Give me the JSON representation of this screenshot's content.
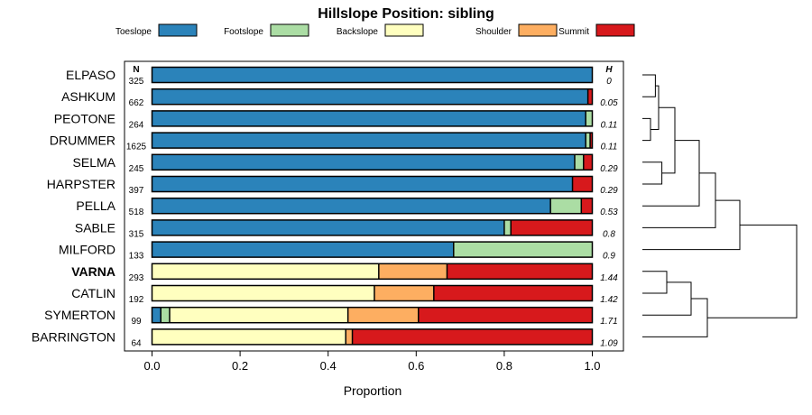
{
  "chart_data": {
    "type": "bar",
    "orientation": "horizontal",
    "stacked": true,
    "title": "Hillslope Position: sibling",
    "xlabel": "Proportion",
    "ylabel": "",
    "xlim": [
      0,
      1
    ],
    "xticks": [
      "0.0",
      "0.2",
      "0.4",
      "0.6",
      "0.8",
      "1.0"
    ],
    "xtick_values": [
      0,
      0.2,
      0.4,
      0.6,
      0.8,
      1.0
    ],
    "n_header": "N",
    "h_header": "H",
    "legend": [
      {
        "name": "Toeslope",
        "color": "#2b83ba"
      },
      {
        "name": "Footslope",
        "color": "#abdda4"
      },
      {
        "name": "Backslope",
        "color": "#ffffbf"
      },
      {
        "name": "Shoulder",
        "color": "#fdae61"
      },
      {
        "name": "Summit",
        "color": "#d7191c"
      }
    ],
    "categories": [
      "ELPASO",
      "ASHKUM",
      "PEOTONE",
      "DRUMMER",
      "SELMA",
      "HARPSTER",
      "PELLA",
      "SABLE",
      "MILFORD",
      "VARNA",
      "CATLIN",
      "SYMERTON",
      "BARRINGTON"
    ],
    "highlight": "VARNA",
    "n": [
      "325",
      "662",
      "264",
      "1625",
      "245",
      "397",
      "518",
      "315",
      "133",
      "293",
      "192",
      "99",
      "64"
    ],
    "h": [
      "0",
      "0.05",
      "0.11",
      "0.11",
      "0.29",
      "0.29",
      "0.53",
      "0.8",
      "0.9",
      "1.44",
      "1.42",
      "1.71",
      "1.09"
    ],
    "series": [
      {
        "name": "Toeslope",
        "values": [
          1.0,
          0.99,
          0.985,
          0.985,
          0.96,
          0.955,
          0.905,
          0.8,
          0.685,
          0,
          0,
          0.02,
          0
        ]
      },
      {
        "name": "Footslope",
        "values": [
          0,
          0,
          0.015,
          0.01,
          0.02,
          0,
          0.07,
          0.015,
          0.315,
          0,
          0,
          0.02,
          0
        ]
      },
      {
        "name": "Backslope",
        "values": [
          0,
          0,
          0,
          0,
          0,
          0,
          0,
          0,
          0,
          0.515,
          0.505,
          0.405,
          0.44
        ]
      },
      {
        "name": "Shoulder",
        "values": [
          0,
          0,
          0,
          0,
          0,
          0,
          0,
          0,
          0,
          0.155,
          0.135,
          0.16,
          0.015
        ]
      },
      {
        "name": "Summit",
        "values": [
          0,
          0.01,
          0,
          0.005,
          0.02,
          0.045,
          0.025,
          0.185,
          0,
          0.33,
          0.36,
          0.395,
          0.545
        ]
      }
    ],
    "dendrogram": {
      "description": "hierarchical clustering of the 13 series",
      "merge_heights": [
        0.05,
        0.08,
        0.1,
        0.12,
        0.2,
        0.35,
        0.45,
        0.6,
        0.15,
        0.3,
        0.4,
        0.95
      ]
    }
  }
}
